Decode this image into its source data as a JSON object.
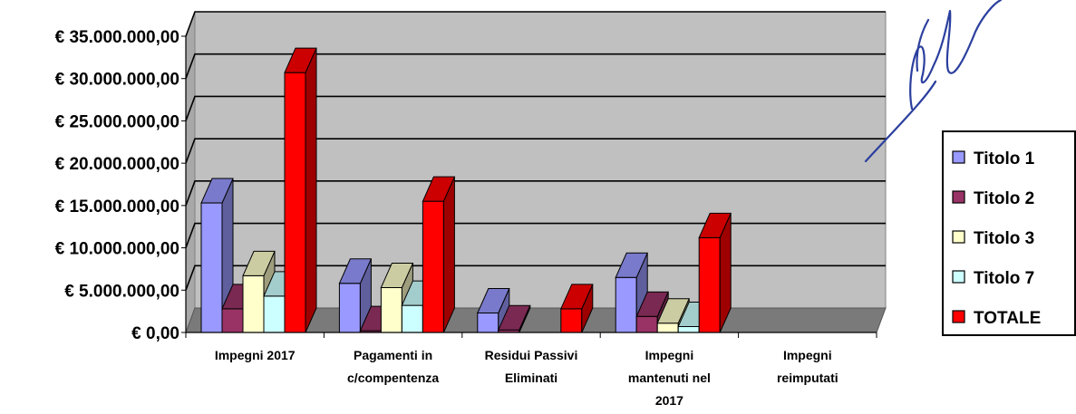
{
  "chart_data": {
    "type": "bar",
    "title": "",
    "xlabel": "",
    "ylabel": "",
    "ylim": [
      0,
      35000000
    ],
    "yticks": [
      {
        "value": 0,
        "label": "€ 0,00"
      },
      {
        "value": 5000000,
        "label": "€ 5.000.000,00"
      },
      {
        "value": 10000000,
        "label": "€ 10.000.000,00"
      },
      {
        "value": 15000000,
        "label": "€ 15.000.000,00"
      },
      {
        "value": 20000000,
        "label": "€ 20.000.000,00"
      },
      {
        "value": 25000000,
        "label": "€ 25.000.000,00"
      },
      {
        "value": 30000000,
        "label": "€ 30.000.000,00"
      },
      {
        "value": 35000000,
        "label": "€ 35.000.000,00"
      }
    ],
    "categories": [
      {
        "lines": [
          "Impegni 2017"
        ]
      },
      {
        "lines": [
          "Pagamenti in",
          "c/compentenza"
        ]
      },
      {
        "lines": [
          "Residui Passivi",
          "Eliminati"
        ]
      },
      {
        "lines": [
          "Impegni",
          "mantenuti nel",
          "2017"
        ]
      },
      {
        "lines": [
          "Impegni",
          "reimputati"
        ]
      }
    ],
    "grid": true,
    "legend_position": "right",
    "series": [
      {
        "name": "Titolo 1",
        "color": "#9999ff",
        "values": [
          15300000,
          5800000,
          2300000,
          6500000,
          0
        ]
      },
      {
        "name": "Titolo 2",
        "color": "#993366",
        "values": [
          2800000,
          200000,
          300000,
          1900000,
          0
        ]
      },
      {
        "name": "Titolo 3",
        "color": "#ffffcc",
        "values": [
          6700000,
          5300000,
          0,
          1100000,
          0
        ]
      },
      {
        "name": "Titolo 7",
        "color": "#ccffff",
        "values": [
          4300000,
          3200000,
          0,
          700000,
          0
        ]
      },
      {
        "name": "TOTALE",
        "color": "#ff0000",
        "values": [
          30700000,
          15500000,
          2800000,
          11200000,
          0
        ]
      }
    ]
  }
}
